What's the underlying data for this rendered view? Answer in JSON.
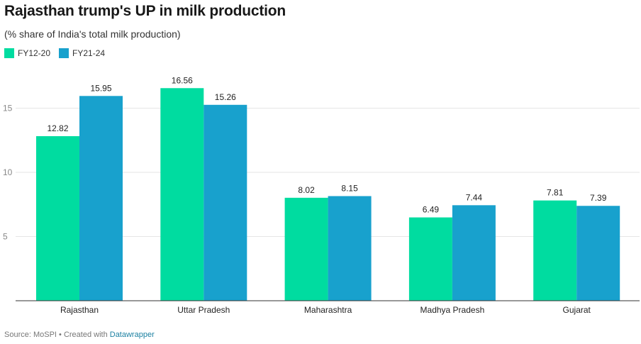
{
  "title": "Rajasthan trump's UP in milk production",
  "subtitle": "(% share of India's total milk production)",
  "footer": {
    "source": "Source: MoSPI • Created with ",
    "link": "Datawrapper"
  },
  "colors": {
    "fy12_20": "#00dca0",
    "fy21_24": "#18a1cd",
    "grid": "#e5e5e5",
    "axis": "#333333",
    "tick": "#888888"
  },
  "chart_data": {
    "type": "bar",
    "title": "Rajasthan trump's UP in milk production",
    "subtitle": "(% share of India's total milk production)",
    "categories": [
      "Rajasthan",
      "Uttar Pradesh",
      "Maharashtra",
      "Madhya Pradesh",
      "Gujarat"
    ],
    "series": [
      {
        "name": "FY12-20",
        "values": [
          12.82,
          16.56,
          8.02,
          6.49,
          7.81
        ],
        "color": "#00dca0"
      },
      {
        "name": "FY21-24",
        "values": [
          15.95,
          15.26,
          8.15,
          7.44,
          7.39
        ],
        "color": "#18a1cd"
      }
    ],
    "yticks": [
      5,
      10,
      15
    ],
    "ylim": [
      0,
      17.5
    ],
    "grid": true,
    "legend": "top-left",
    "xlabel": "",
    "ylabel": ""
  }
}
